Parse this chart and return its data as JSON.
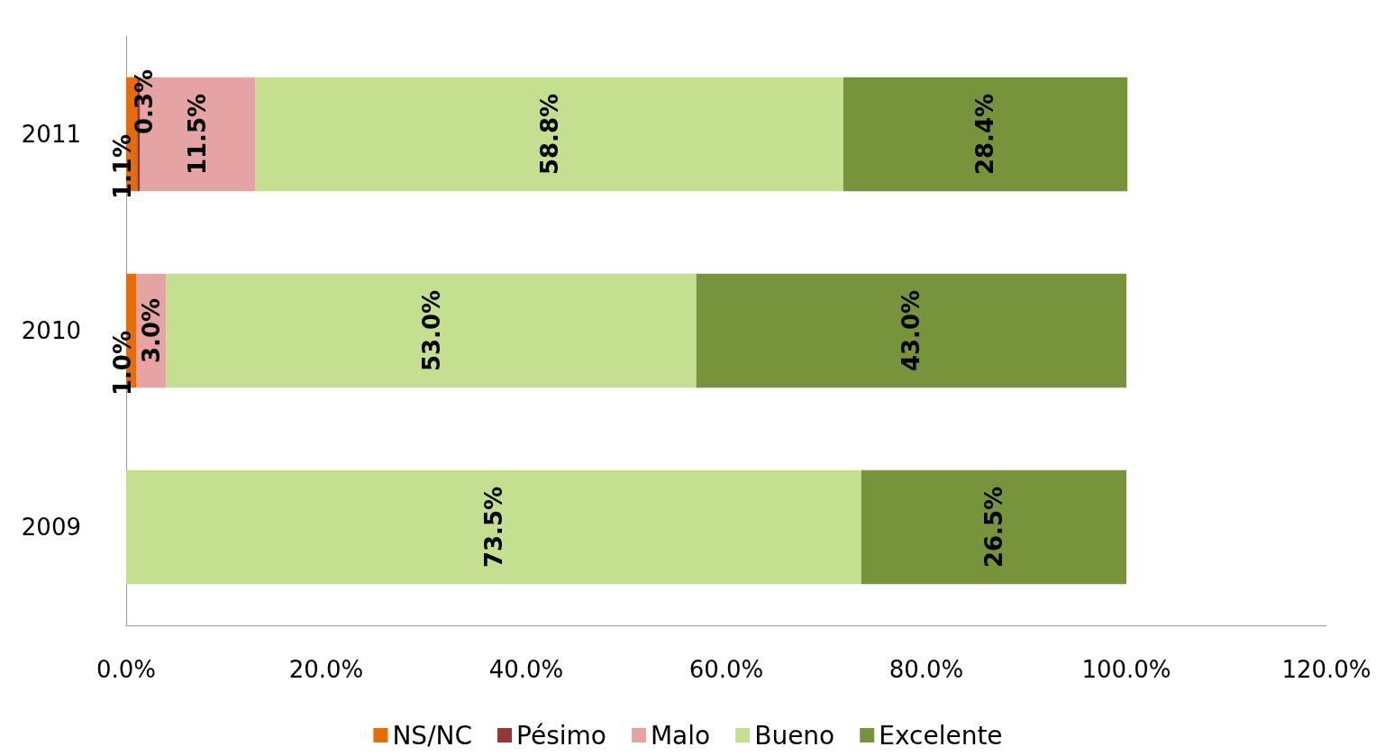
{
  "chart_data": {
    "type": "bar",
    "orientation": "horizontal",
    "stacked": true,
    "categories": [
      "2011",
      "2010",
      "2009"
    ],
    "series": [
      {
        "name": "NS/NC",
        "color": "#e46c0a",
        "values": [
          1.1,
          1.0,
          null
        ],
        "value_labels": [
          "1.1%",
          "1.0%",
          null
        ]
      },
      {
        "name": "Pésimo",
        "color": "#953735",
        "values": [
          0.3,
          null,
          null
        ],
        "value_labels": [
          "0.3%",
          null,
          null
        ]
      },
      {
        "name": "Malo",
        "color": "#e6a3a3",
        "values": [
          11.5,
          3.0,
          null
        ],
        "value_labels": [
          "11.5%",
          "3.0%",
          null
        ]
      },
      {
        "name": "Bueno",
        "color": "#c3df8f",
        "values": [
          58.8,
          53.0,
          73.5
        ],
        "value_labels": [
          "58.8%",
          "53.0%",
          "73.5%"
        ]
      },
      {
        "name": "Excelente",
        "color": "#77933c",
        "values": [
          28.4,
          43.0,
          26.5
        ],
        "value_labels": [
          "28.4%",
          "43.0%",
          "26.5%"
        ]
      }
    ],
    "xlim": [
      0,
      120
    ],
    "xticks": [
      {
        "value": 0,
        "label": "0.0%"
      },
      {
        "value": 20,
        "label": "20.0%"
      },
      {
        "value": 40,
        "label": "40.0%"
      },
      {
        "value": 60,
        "label": "60.0%"
      },
      {
        "value": 80,
        "label": "80.0%"
      },
      {
        "value": 100,
        "label": "100.0%"
      },
      {
        "value": 120,
        "label": "120.0%"
      }
    ],
    "grid": false,
    "legend": "bottom"
  }
}
